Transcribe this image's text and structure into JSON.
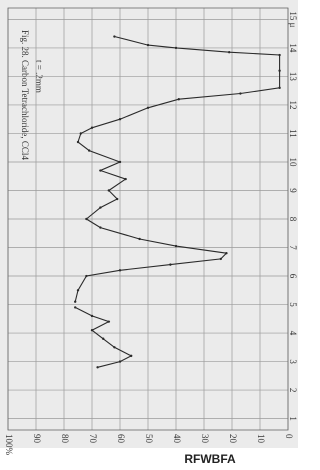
{
  "chart_data": {
    "type": "line",
    "title": "Fig. 28. Carbon Tetrachloride, CCl4",
    "subtitle": "t = .2mm",
    "x": [
      14.4,
      14.1,
      14.0,
      13.85,
      13.75,
      13.2,
      12.6,
      12.4,
      12.2,
      11.9,
      11.5,
      11.2,
      11.0,
      10.7,
      10.4,
      10.0,
      9.7,
      9.4,
      9.0,
      8.7,
      8.4,
      8.0,
      7.7,
      7.3,
      7.05,
      6.8,
      6.6,
      6.4,
      6.2,
      6.0,
      5.5,
      5.1,
      5.0,
      4.9,
      4.6,
      4.4,
      4.1,
      3.8,
      3.5,
      3.2,
      3.0,
      2.8
    ],
    "series": [
      {
        "color": "#2a2a2a",
        "values": [
          62,
          50,
          40,
          21,
          3,
          3,
          3,
          17,
          39,
          50,
          60,
          70,
          74,
          75,
          71,
          60,
          67,
          58,
          64,
          61,
          67,
          72,
          67,
          53,
          40,
          22,
          24,
          42,
          60,
          72,
          75,
          76,
          null,
          76,
          70,
          64,
          70,
          66,
          62,
          56,
          60,
          68
        ]
      }
    ],
    "xlim": [
      0.6,
      15.4
    ],
    "xticks": [
      1,
      2,
      3,
      4,
      5,
      6,
      7,
      8,
      9,
      10,
      11,
      12,
      13,
      14,
      {
        "value": 15,
        "label": "15 μ"
      }
    ],
    "ylim": [
      0,
      100
    ],
    "yticks": [
      {
        "value": 100,
        "label": "100%"
      },
      90,
      80,
      70,
      60,
      50,
      40,
      30,
      20,
      10,
      0
    ],
    "grid": true
  },
  "watermark": "RFWBFA"
}
